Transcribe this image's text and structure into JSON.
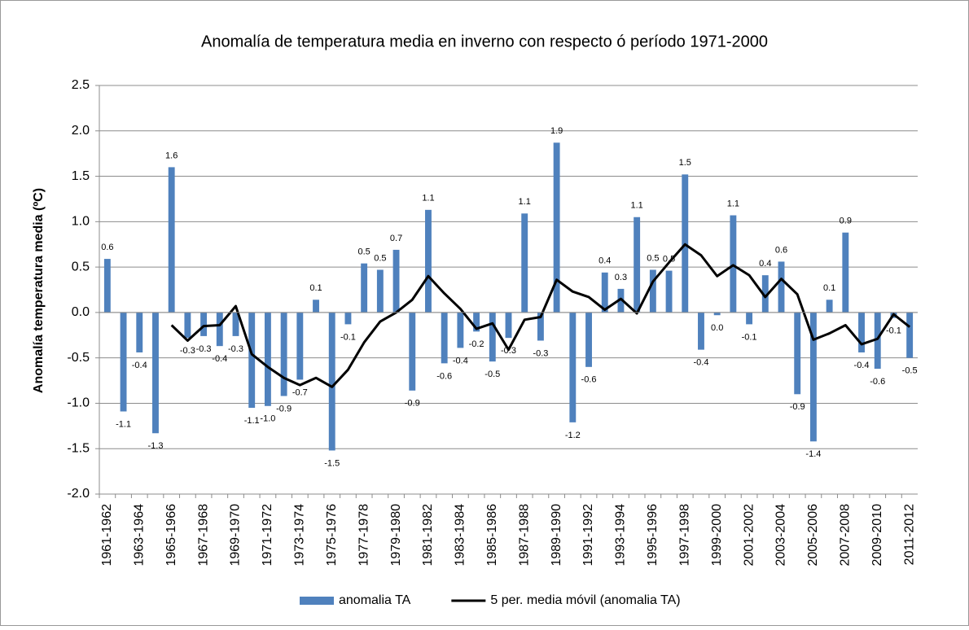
{
  "chart_data": {
    "type": "bar",
    "title": "Anomalía de temperatura media en inverno con respecto ó período 1971-2000",
    "y_label": "Anomalía temperatura media (ºC)",
    "categories": [
      "1961-1962",
      null,
      "1963-1964",
      null,
      "1965-1966",
      null,
      "1967-1968",
      null,
      "1969-1970",
      null,
      "1971-1972",
      null,
      "1973-1974",
      null,
      "1975-1976",
      null,
      "1977-1978",
      null,
      "1979-1980",
      null,
      "1981-1982",
      null,
      "1983-1984",
      null,
      "1985-1986",
      null,
      "1987-1988",
      null,
      "1989-1990",
      null,
      "1991-1992",
      null,
      "1993-1994",
      null,
      "1995-1996",
      null,
      "1997-1998",
      null,
      "1999-2000",
      null,
      "2001-2002",
      null,
      "2003-2004",
      null,
      "2005-2006",
      null,
      "2007-2008",
      null,
      "2009-2010",
      null,
      "2011-2012"
    ],
    "series": [
      {
        "name": "anomalia TA",
        "type": "bar",
        "color": "#4f81bd",
        "values": [
          0.59,
          -1.09,
          -0.44,
          -1.33,
          1.6,
          -0.28,
          -0.26,
          -0.37,
          -0.26,
          -1.05,
          -1.03,
          -0.92,
          -0.74,
          0.14,
          -1.52,
          -0.13,
          0.54,
          0.47,
          0.69,
          -0.86,
          1.13,
          -0.56,
          -0.39,
          -0.21,
          -0.54,
          -0.28,
          1.09,
          -0.31,
          1.87,
          -1.21,
          -0.6,
          0.44,
          0.26,
          1.05,
          0.47,
          0.46,
          1.52,
          -0.41,
          -0.03,
          1.07,
          -0.13,
          0.41,
          0.56,
          -0.9,
          -1.42,
          0.14,
          0.88,
          -0.44,
          -0.62,
          -0.06,
          -0.5
        ],
        "value_labels": [
          "0.6",
          "-1.1",
          "-0.4",
          "-1.3",
          "1.6",
          "-0.3",
          "-0.3",
          "-0.4",
          "-0.3",
          "-1.1",
          "-1.0",
          "-0.9",
          "-0.7",
          "0.1",
          "-1.5",
          "-0.1",
          "0.5",
          "0.5",
          "0.7",
          "-0.9",
          "1.1",
          "-0.6",
          "-0.4",
          "-0.2",
          "-0.5",
          "-0.3",
          "1.1",
          "-0.3",
          "1.9",
          "-1.2",
          "-0.6",
          "0.4",
          "0.3",
          "1.1",
          "0.5",
          "0.5",
          "1.5",
          "-0.4",
          "0.0",
          "1.1",
          "-0.1",
          "0.4",
          "0.6",
          "-0.9",
          "-1.4",
          "0.1",
          "0.9",
          "-0.4",
          "-0.6",
          "-0.1",
          "-0.5"
        ]
      },
      {
        "name": "5 per. media móvil (anomalia TA)",
        "type": "line",
        "color": "#000000",
        "values": [
          null,
          null,
          null,
          null,
          -0.14,
          -0.31,
          -0.15,
          -0.14,
          0.07,
          -0.46,
          -0.6,
          -0.72,
          -0.8,
          -0.72,
          -0.82,
          -0.63,
          -0.33,
          -0.1,
          0.0,
          0.14,
          0.4,
          0.21,
          0.04,
          -0.18,
          -0.12,
          -0.41,
          -0.08,
          -0.05,
          0.36,
          0.23,
          0.17,
          0.03,
          0.15,
          -0.01,
          0.34,
          0.55,
          0.75,
          0.63,
          0.4,
          0.52,
          0.41,
          0.17,
          0.37,
          0.2,
          -0.3,
          -0.23,
          -0.14,
          -0.35,
          -0.29,
          -0.02,
          -0.16
        ]
      }
    ],
    "ylim": [
      -2.0,
      2.5
    ],
    "yticks": [
      {
        "value": -2.0,
        "label": "-2.0"
      },
      -1.5,
      {
        "value": -1.0,
        "label": "-1.0"
      },
      -0.5,
      {
        "value": 0.0,
        "label": "0.0"
      },
      0.5,
      {
        "value": 1.0,
        "label": "1.0"
      },
      1.5,
      {
        "value": 2.0,
        "label": "2.0"
      },
      2.5
    ],
    "grid": true,
    "legend": "bottom"
  }
}
